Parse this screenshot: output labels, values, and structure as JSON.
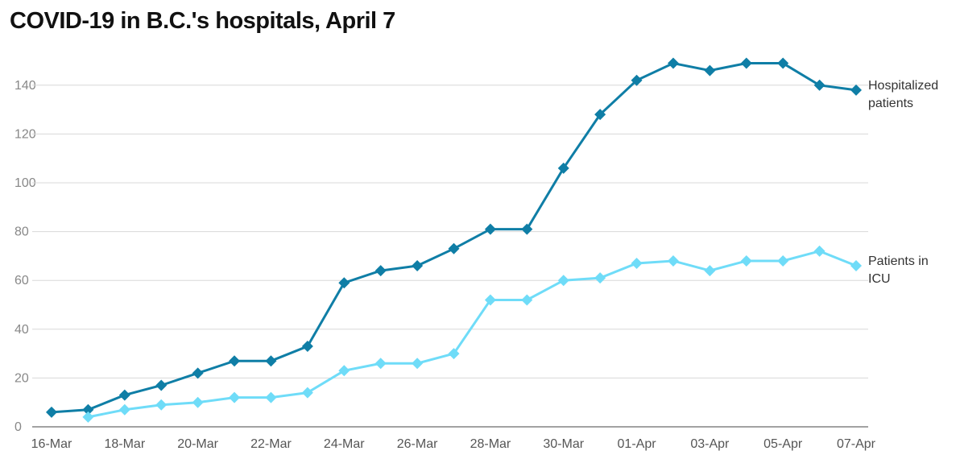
{
  "chart_data": {
    "type": "line",
    "title": "COVID-19 in B.C.'s hospitals, April 7",
    "categories": [
      "16-Mar",
      null,
      "18-Mar",
      null,
      "20-Mar",
      null,
      "22-Mar",
      null,
      "24-Mar",
      null,
      "26-Mar",
      null,
      "28-Mar",
      null,
      "30-Mar",
      null,
      "01-Apr",
      null,
      "03-Apr",
      null,
      "05-Apr",
      null,
      "07-Apr"
    ],
    "series": [
      {
        "name": "Hospitalized patients",
        "color": "#0f7ea6",
        "values": [
          6,
          7,
          13,
          17,
          22,
          27,
          27,
          33,
          59,
          64,
          66,
          73,
          81,
          81,
          106,
          128,
          142,
          149,
          146,
          149,
          149,
          140,
          138
        ]
      },
      {
        "name": "Patients in ICU",
        "color": "#6fdcf8",
        "values": [
          null,
          4,
          7,
          9,
          10,
          12,
          12,
          14,
          23,
          26,
          26,
          30,
          52,
          52,
          60,
          61,
          67,
          68,
          64,
          68,
          68,
          72,
          66
        ]
      }
    ],
    "ylim": [
      0,
      150
    ],
    "yticks": [
      0,
      20,
      40,
      60,
      80,
      100,
      120,
      140
    ],
    "grid": true
  }
}
